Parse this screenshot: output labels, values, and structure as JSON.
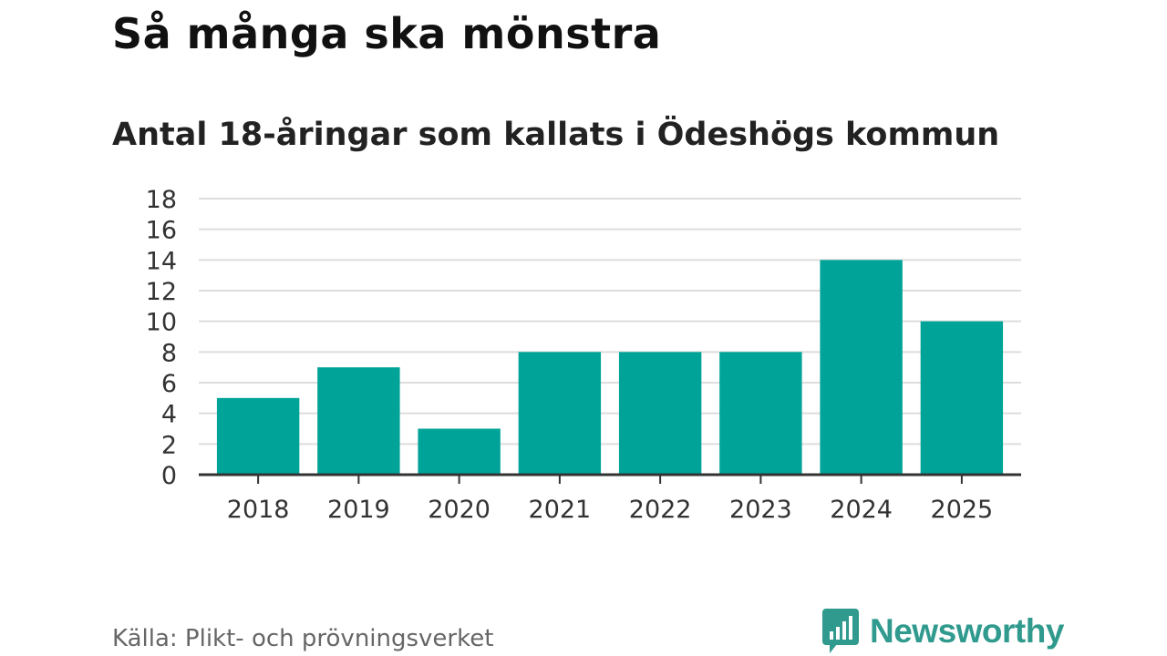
{
  "title": "Så många ska mönstra",
  "subtitle": "Antal 18-åringar som kallats i Ödeshögs kommun",
  "source": "Källa: Plikt- och prövningsverket",
  "brand": {
    "name": "Newsworthy",
    "icon": "newsworthy-logo-icon",
    "color": "#2f9a8d"
  },
  "colors": {
    "bar": "#00a398",
    "grid": "#dddddd",
    "axis": "#333333"
  },
  "chart_data": {
    "type": "bar",
    "categories": [
      "2018",
      "2019",
      "2020",
      "2021",
      "2022",
      "2023",
      "2024",
      "2025"
    ],
    "values": [
      5,
      7,
      3,
      8,
      8,
      8,
      14,
      10
    ],
    "ylim": [
      0,
      18
    ],
    "yticks": [
      0,
      2,
      4,
      6,
      8,
      10,
      12,
      14,
      16,
      18
    ],
    "grid": true,
    "legend": "none"
  }
}
